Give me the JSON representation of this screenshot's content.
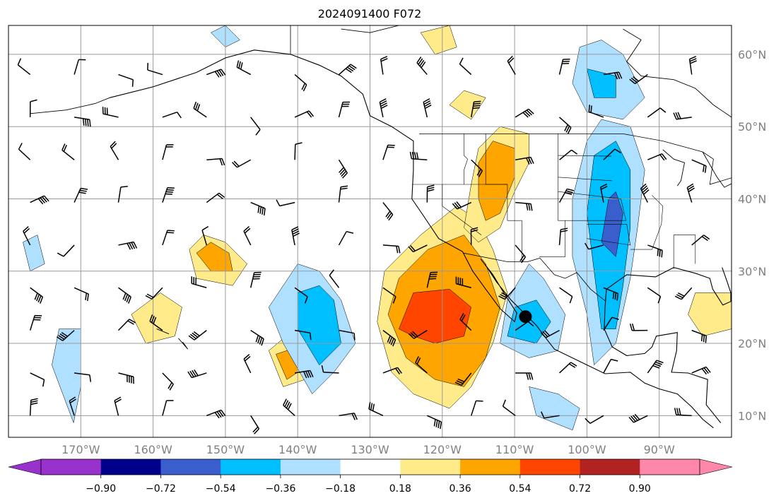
{
  "title": "2024091400 F072",
  "colors": {
    "frame": "#000000",
    "grid": "#9a9a9a",
    "coast": "#000000",
    "label": "#808080",
    "positive": [
      "#ffeb8a",
      "#ffa500",
      "#ff4500",
      "#b22222"
    ],
    "negative": [
      "#b0e0ff",
      "#00bfff",
      "#3a5fcd",
      "#00008b"
    ]
  },
  "map": {
    "projection": "lat-lon",
    "lon_range": [
      -180,
      -80
    ],
    "lat_range": [
      7,
      64
    ],
    "grid": true,
    "lon_ticks": [
      -170,
      -160,
      -150,
      -140,
      -130,
      -120,
      -110,
      -100,
      -90
    ],
    "lon_tick_labels": [
      "170°W",
      "160°W",
      "150°W",
      "140°W",
      "130°W",
      "120°W",
      "110°W",
      "100°W",
      "90°W"
    ],
    "lat_ticks": [
      10,
      20,
      30,
      40,
      50,
      60
    ],
    "lat_tick_labels": [
      "10°N",
      "20°N",
      "30°N",
      "40°N",
      "50°N",
      "60°N"
    ],
    "marker": {
      "icon": "filled-circle-marker",
      "lon": -108.5,
      "lat": 23.7
    }
  },
  "colorbar": {
    "orientation": "horizontal",
    "extend": "both",
    "levels": [
      -0.9,
      -0.72,
      -0.54,
      -0.36,
      -0.18,
      0.18,
      0.36,
      0.54,
      0.72,
      0.9
    ],
    "tick_labels": [
      "−0.90",
      "−0.72",
      "−0.54",
      "−0.36",
      "−0.18",
      "0.18",
      "0.36",
      "0.54",
      "0.72",
      "0.90"
    ],
    "colors": [
      "#9932cc",
      "#00008b",
      "#3a5fcd",
      "#00bfff",
      "#b0e0ff",
      "#ffffff",
      "#ffeb8a",
      "#ffa500",
      "#ff4500",
      "#b22222",
      "#ff88aa"
    ]
  }
}
